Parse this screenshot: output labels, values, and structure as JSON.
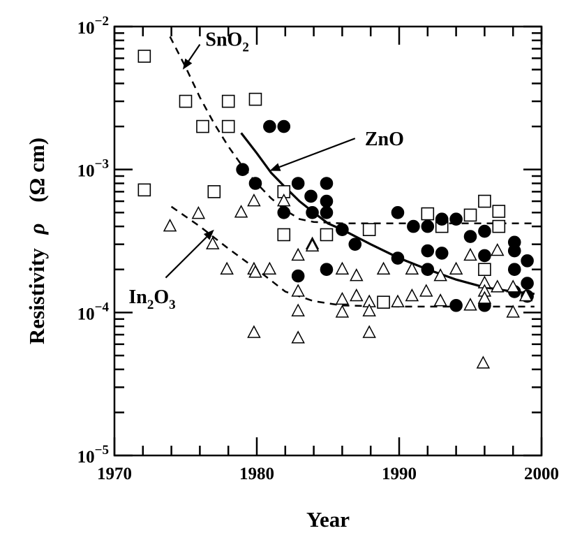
{
  "chart_data": {
    "type": "scatter",
    "title": "",
    "xlabel": "Year",
    "ylabel_text": "Resistivity",
    "ylabel_symbol": "ρ",
    "ylabel_unit": "(Ω cm)",
    "xlim": [
      1970,
      2000
    ],
    "ylim": [
      1e-05,
      0.01
    ],
    "yscale": "log",
    "x_ticks": [
      {
        "value": 1970,
        "label": "1970"
      },
      {
        "value": 1980,
        "label": "1980"
      },
      {
        "value": 1990,
        "label": "1990"
      },
      {
        "value": 2000,
        "label": "2000"
      }
    ],
    "y_ticks": [
      {
        "value": 1e-05,
        "base": "10",
        "exp": "−5"
      },
      {
        "value": 0.0001,
        "base": "10",
        "exp": "−4"
      },
      {
        "value": 0.001,
        "base": "10",
        "exp": "−3"
      },
      {
        "value": 0.01,
        "base": "10",
        "exp": "−2"
      }
    ],
    "grid": false,
    "series": [
      {
        "name": "SnO2",
        "marker": "square",
        "points": [
          [
            1972.1,
            0.0062
          ],
          [
            1972.1,
            0.00072
          ],
          [
            1975.0,
            0.003
          ],
          [
            1976.2,
            0.002
          ],
          [
            1977.0,
            0.0007
          ],
          [
            1978.0,
            0.003
          ],
          [
            1978.0,
            0.002
          ],
          [
            1979.9,
            0.0031
          ],
          [
            1981.9,
            0.0007
          ],
          [
            1981.9,
            0.00035
          ],
          [
            1984.9,
            0.00035
          ],
          [
            1987.9,
            0.00038
          ],
          [
            1988.9,
            0.000118
          ],
          [
            1992.0,
            0.00049
          ],
          [
            1993.0,
            0.0004
          ],
          [
            1995.0,
            0.00048
          ],
          [
            1996.0,
            0.0006
          ],
          [
            1996.0,
            0.0002
          ],
          [
            1997.0,
            0.00051
          ],
          [
            1997.0,
            0.0004
          ]
        ]
      },
      {
        "name": "ZnO",
        "marker": "circle",
        "points": [
          [
            1979.0,
            0.001
          ],
          [
            1979.9,
            0.0008
          ],
          [
            1980.9,
            0.002
          ],
          [
            1981.9,
            0.002
          ],
          [
            1981.9,
            0.0005
          ],
          [
            1982.9,
            0.0008
          ],
          [
            1982.9,
            0.00018
          ],
          [
            1983.8,
            0.00065
          ],
          [
            1983.9,
            0.0005
          ],
          [
            1984.9,
            0.0008
          ],
          [
            1984.9,
            0.0006
          ],
          [
            1984.9,
            0.0005
          ],
          [
            1984.9,
            0.0002
          ],
          [
            1986.0,
            0.00038
          ],
          [
            1986.9,
            0.0003
          ],
          [
            1989.9,
            0.0005
          ],
          [
            1989.9,
            0.00024
          ],
          [
            1991.0,
            0.0004
          ],
          [
            1992.0,
            0.0004
          ],
          [
            1992.0,
            0.00027
          ],
          [
            1992.0,
            0.0002
          ],
          [
            1993.0,
            0.00045
          ],
          [
            1993.0,
            0.00026
          ],
          [
            1994.0,
            0.00045
          ],
          [
            1994.0,
            0.000112
          ],
          [
            1995.0,
            0.00034
          ],
          [
            1996.0,
            0.00037
          ],
          [
            1996.0,
            0.00025
          ],
          [
            1996.0,
            0.000112
          ],
          [
            1998.1,
            0.00031
          ],
          [
            1998.1,
            0.00027
          ],
          [
            1998.1,
            0.0002
          ],
          [
            1998.1,
            0.00014
          ],
          [
            1999.0,
            0.00023
          ],
          [
            1999.0,
            0.00016
          ],
          [
            1999.0,
            0.00013
          ]
        ]
      },
      {
        "name": "In2O3",
        "marker": "triangle",
        "points": [
          [
            1973.9,
            0.0004
          ],
          [
            1975.9,
            0.00049
          ],
          [
            1976.9,
            0.0003
          ],
          [
            1977.9,
            0.0002
          ],
          [
            1978.9,
            0.0005
          ],
          [
            1979.8,
            0.0006
          ],
          [
            1979.8,
            0.0002
          ],
          [
            1979.8,
            7.2e-05
          ],
          [
            1979.9,
            0.00019
          ],
          [
            1980.9,
            0.0002
          ],
          [
            1981.9,
            0.0006
          ],
          [
            1982.9,
            0.00025
          ],
          [
            1982.9,
            0.00014
          ],
          [
            1982.9,
            0.000102
          ],
          [
            1982.9,
            6.6e-05
          ],
          [
            1983.9,
            0.0003
          ],
          [
            1983.9,
            0.00029
          ],
          [
            1986.0,
            0.0002
          ],
          [
            1986.0,
            0.000123
          ],
          [
            1986.0,
            0.0001
          ],
          [
            1987.0,
            0.00018
          ],
          [
            1987.0,
            0.00013
          ],
          [
            1987.9,
            0.000118
          ],
          [
            1987.9,
            0.000102
          ],
          [
            1987.9,
            7.2e-05
          ],
          [
            1988.9,
            0.0002
          ],
          [
            1989.9,
            0.000118
          ],
          [
            1990.9,
            0.0002
          ],
          [
            1990.9,
            0.00013
          ],
          [
            1991.9,
            0.00014
          ],
          [
            1992.9,
            0.00018
          ],
          [
            1992.9,
            0.00012
          ],
          [
            1994.0,
            0.0002
          ],
          [
            1995.0,
            0.00025
          ],
          [
            1995.0,
            0.000112
          ],
          [
            1995.9,
            4.4e-05
          ],
          [
            1996.0,
            0.00016
          ],
          [
            1996.0,
            0.00014
          ],
          [
            1996.0,
            0.000125
          ],
          [
            1996.9,
            0.00027
          ],
          [
            1996.9,
            0.00015
          ],
          [
            1998.0,
            0.00015
          ],
          [
            1998.0,
            0.0001
          ],
          [
            1998.9,
            0.00013
          ]
        ]
      }
    ],
    "trend_curves": [
      {
        "name": "SnO2",
        "style": "dashed",
        "points": [
          [
            1973.9,
            0.0085
          ],
          [
            1975.0,
            0.0052
          ],
          [
            1976.0,
            0.0032
          ],
          [
            1977.0,
            0.0021
          ],
          [
            1978.0,
            0.00145
          ],
          [
            1979.0,
            0.00105
          ],
          [
            1980.0,
            0.0008
          ],
          [
            1981.0,
            0.00063
          ],
          [
            1982.0,
            0.00052
          ],
          [
            1983.0,
            0.00045
          ],
          [
            1984.0,
            0.00043
          ],
          [
            1986.0,
            0.00042
          ],
          [
            1999.5,
            0.00042
          ]
        ]
      },
      {
        "name": "ZnO",
        "style": "solid",
        "points": [
          [
            1978.9,
            0.0018
          ],
          [
            1980.0,
            0.0013
          ],
          [
            1981.0,
            0.00095
          ],
          [
            1982.0,
            0.00075
          ],
          [
            1983.0,
            0.0006
          ],
          [
            1984.0,
            0.0005
          ],
          [
            1985.0,
            0.00042
          ],
          [
            1986.0,
            0.00038
          ],
          [
            1988.0,
            0.0003
          ],
          [
            1990.0,
            0.00024
          ],
          [
            1992.0,
            0.0002
          ],
          [
            1994.0,
            0.00017
          ],
          [
            1996.0,
            0.00015
          ],
          [
            1998.0,
            0.00014
          ],
          [
            1999.5,
            0.000135
          ]
        ]
      },
      {
        "name": "In2O3",
        "style": "dashed",
        "points": [
          [
            1974.0,
            0.00055
          ],
          [
            1976.0,
            0.0004
          ],
          [
            1978.0,
            0.00028
          ],
          [
            1980.0,
            0.0002
          ],
          [
            1982.0,
            0.00014
          ],
          [
            1984.0,
            0.00012
          ],
          [
            1986.0,
            0.000112
          ],
          [
            1990.0,
            0.00011
          ],
          [
            1999.5,
            0.00011
          ]
        ]
      }
    ],
    "annotations": [
      {
        "id": "sno2",
        "base": "SnO",
        "sub1": "2",
        "mid": "",
        "sub2": "",
        "text_at": [
          1976.0,
          0.0075
        ],
        "arrow_from": [
          1976.0,
          0.0075
        ],
        "arrow_to": [
          1974.8,
          0.005
        ]
      },
      {
        "id": "zno",
        "base": "ZnO",
        "sub1": "",
        "mid": "",
        "sub2": "",
        "text_at": [
          1987.2,
          0.00165
        ],
        "arrow_from": [
          1986.9,
          0.00165
        ],
        "arrow_to": [
          1980.9,
          0.00098
        ]
      },
      {
        "id": "in2o3",
        "base": "In",
        "sub1": "2",
        "mid": "O",
        "sub2": "3",
        "text_at": [
          1971.0,
          0.00013
        ],
        "arrow_from": [
          1973.6,
          0.000175
        ],
        "arrow_to": [
          1977.0,
          0.00038
        ]
      }
    ]
  }
}
